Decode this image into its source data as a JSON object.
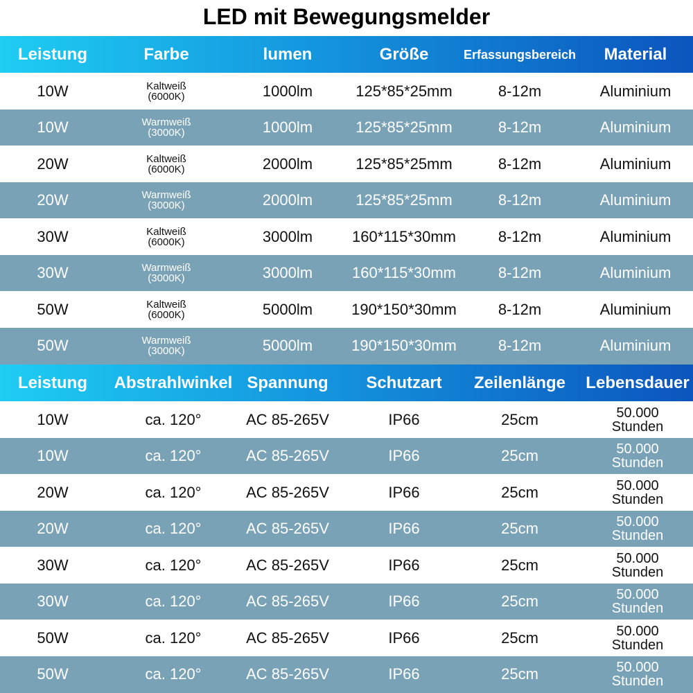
{
  "title": "LED mit Bewegungsmelder",
  "table1": {
    "headers": [
      "Leistung",
      "Farbe",
      "lumen",
      "Größe",
      "Erfassungsbereich",
      "Material"
    ],
    "rows": [
      [
        "10W",
        [
          "Kaltweiß",
          "(6000K)"
        ],
        "1000lm",
        "125*85*25mm",
        "8-12m",
        "Aluminium"
      ],
      [
        "10W",
        [
          "Warmweiß",
          "(3000K)"
        ],
        "1000lm",
        "125*85*25mm",
        "8-12m",
        "Aluminium"
      ],
      [
        "20W",
        [
          "Kaltweiß",
          "(6000K)"
        ],
        "2000lm",
        "125*85*25mm",
        "8-12m",
        "Aluminium"
      ],
      [
        "20W",
        [
          "Warmweiß",
          "(3000K)"
        ],
        "2000lm",
        "125*85*25mm",
        "8-12m",
        "Aluminium"
      ],
      [
        "30W",
        [
          "Kaltweiß",
          "(6000K)"
        ],
        "3000lm",
        "160*115*30mm",
        "8-12m",
        "Aluminium"
      ],
      [
        "30W",
        [
          "Warmweiß",
          "(3000K)"
        ],
        "3000lm",
        "160*115*30mm",
        "8-12m",
        "Aluminium"
      ],
      [
        "50W",
        [
          "Kaltweiß",
          "(6000K)"
        ],
        "5000lm",
        "190*150*30mm",
        "8-12m",
        "Aluminium"
      ],
      [
        "50W",
        [
          "Warmweiß",
          "(3000K)"
        ],
        "5000lm",
        "190*150*30mm",
        "8-12m",
        "Aluminium"
      ]
    ]
  },
  "table2": {
    "headers": [
      "Leistung",
      "Abstrahlwinkel",
      "Spannung",
      "Schutzart",
      "Zeilenlänge",
      "Lebensdauer"
    ],
    "rows": [
      [
        "10W",
        "ca. 120°",
        "AC 85-265V",
        "IP66",
        "25cm",
        [
          "50.000",
          "Stunden"
        ]
      ],
      [
        "10W",
        "ca. 120°",
        "AC 85-265V",
        "IP66",
        "25cm",
        [
          "50.000",
          "Stunden"
        ]
      ],
      [
        "20W",
        "ca. 120°",
        "AC 85-265V",
        "IP66",
        "25cm",
        [
          "50.000",
          "Stunden"
        ]
      ],
      [
        "20W",
        "ca. 120°",
        "AC 85-265V",
        "IP66",
        "25cm",
        [
          "50.000",
          "Stunden"
        ]
      ],
      [
        "30W",
        "ca. 120°",
        "AC 85-265V",
        "IP66",
        "25cm",
        [
          "50.000",
          "Stunden"
        ]
      ],
      [
        "30W",
        "ca. 120°",
        "AC 85-265V",
        "IP66",
        "25cm",
        [
          "50.000",
          "Stunden"
        ]
      ],
      [
        "50W",
        "ca. 120°",
        "AC 85-265V",
        "IP66",
        "25cm",
        [
          "50.000",
          "Stunden"
        ]
      ],
      [
        "50W",
        "ca. 120°",
        "AC 85-265V",
        "IP66",
        "25cm",
        [
          "50.000",
          "Stunden"
        ]
      ]
    ]
  }
}
